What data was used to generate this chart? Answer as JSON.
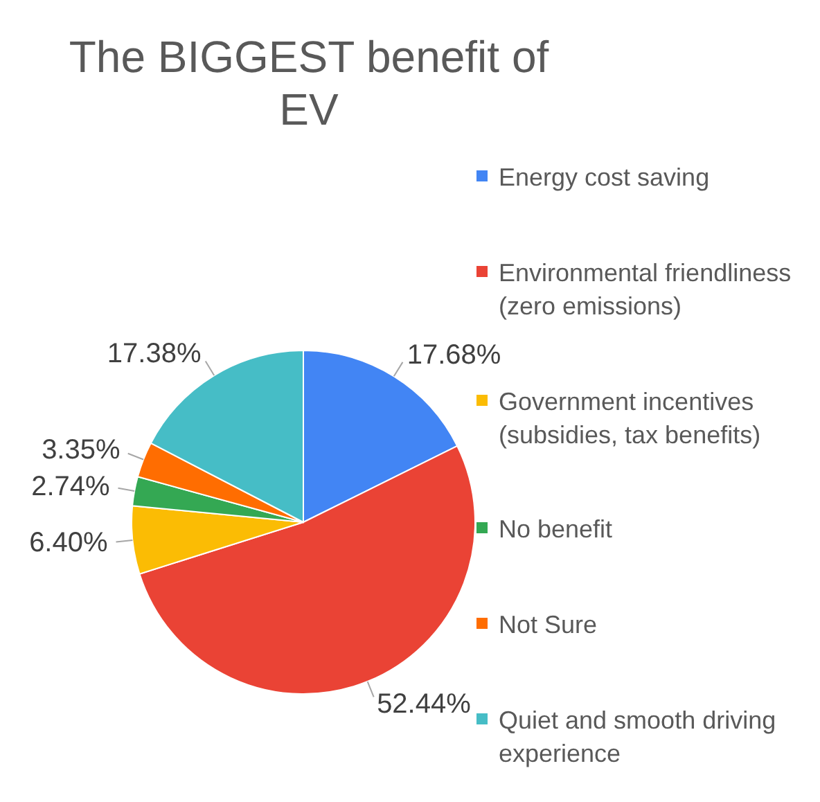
{
  "chart_data": {
    "type": "pie",
    "title": "The BIGGEST benefit of EV",
    "categories": [
      "Energy cost saving",
      "Environmental friendliness (zero emissions)",
      "Government incentives (subsidies, tax benefits)",
      "No benefit",
      "Not Sure",
      "Quiet and smooth driving experience"
    ],
    "values": [
      17.68,
      52.44,
      6.4,
      2.74,
      3.35,
      17.38
    ],
    "colors": [
      "#4285f4",
      "#ea4335",
      "#fbbc04",
      "#34a853",
      "#ff6d01",
      "#46bdc6"
    ],
    "value_labels": [
      "17.68%",
      "52.44%",
      "6.40%",
      "2.74%",
      "3.35%",
      "17.38%"
    ],
    "legend": "right"
  }
}
